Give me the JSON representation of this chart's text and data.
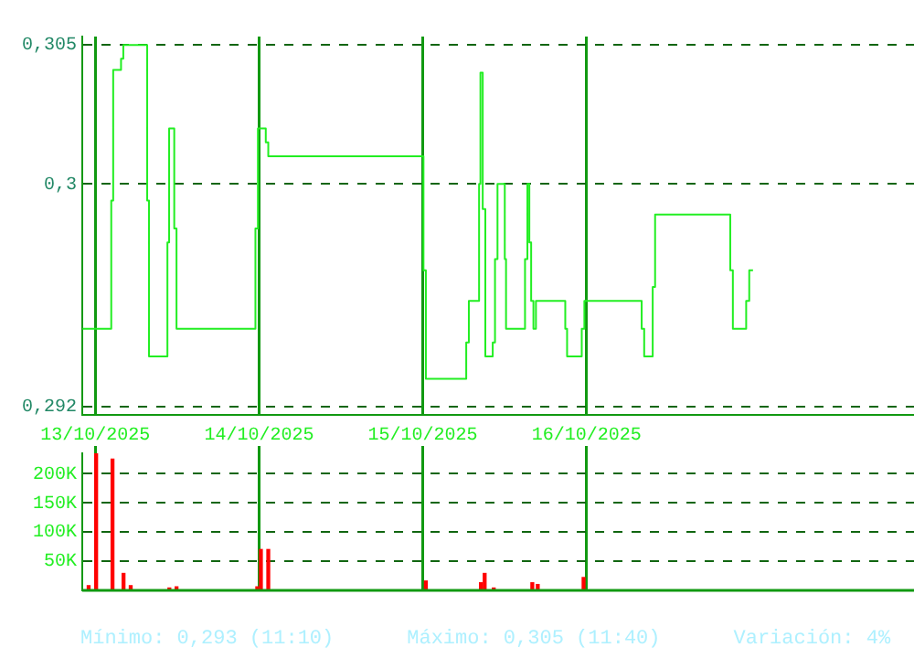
{
  "chart_data": [
    {
      "type": "step",
      "tick_labels": "y",
      "grid": true,
      "legend": false,
      "marker": "none",
      "xlim": [
        "2025-10-12T22:05",
        "2025-10-18T00:00"
      ],
      "xticks": [
        {
          "value": "2025-10-13",
          "label": null
        },
        {
          "value": "2025-10-14",
          "label": null
        },
        {
          "value": "2025-10-15",
          "label": null
        },
        {
          "value": "2025-10-16",
          "label": null
        }
      ],
      "ylim": [
        0.2917,
        0.3053
      ],
      "yticks": [
        {
          "value": 0.292,
          "label": "0,292"
        },
        {
          "value": 0.3,
          "label": "0,3"
        },
        {
          "value": 0.305,
          "label": "0,305"
        }
      ],
      "series": [
        {
          "color": "#22ee22",
          "x": [
            "2025-10-12T22:08",
            "2025-10-13T02:20",
            "2025-10-13T02:37",
            "2025-10-13T03:46",
            "2025-10-13T04:06",
            "2025-10-13T07:36",
            "2025-10-13T07:52",
            "2025-10-13T10:34",
            "2025-10-13T10:49",
            "2025-10-13T11:34",
            "2025-10-13T11:54",
            "2025-10-13T23:28",
            "2025-10-13T23:50",
            "2025-10-14T00:59",
            "2025-10-14T01:21",
            "2025-10-15T00:06",
            "2025-10-15T00:27",
            "2025-10-15T06:22",
            "2025-10-15T06:45",
            "2025-10-15T08:15",
            "2025-10-15T08:27",
            "2025-10-15T08:47",
            "2025-10-15T09:10",
            "2025-10-15T10:15",
            "2025-10-15T10:35",
            "2025-10-15T10:57",
            "2025-10-15T12:01",
            "2025-10-15T12:12",
            "2025-10-15T14:59",
            "2025-10-15T15:20",
            "2025-10-15T15:37",
            "2025-10-15T15:53",
            "2025-10-15T16:13",
            "2025-10-15T16:35",
            "2025-10-15T20:53",
            "2025-10-15T21:09",
            "2025-10-15T23:18",
            "2025-10-15T23:41",
            "2025-10-16T08:05",
            "2025-10-16T08:27",
            "2025-10-16T09:42",
            "2025-10-16T10:03",
            "2025-10-16T21:04",
            "2025-10-16T21:27",
            "2025-10-16T23:24",
            "2025-10-16T23:51",
            "2025-10-17T00:24"
          ],
          "values": [
            0.2948,
            0.2994,
            0.3041,
            0.3045,
            0.305,
            0.2994,
            0.2938,
            0.2979,
            0.302,
            0.2984,
            0.2948,
            0.2984,
            0.302,
            0.3015,
            0.301,
            0.2969,
            0.293,
            0.2943,
            0.2958,
            0.3,
            0.304,
            0.2991,
            0.2938,
            0.2943,
            0.2973,
            0.3,
            0.2973,
            0.2948,
            0.2973,
            0.3,
            0.2979,
            0.2958,
            0.2948,
            0.2958,
            0.2948,
            0.2938,
            0.2948,
            0.2958,
            0.2948,
            0.2938,
            0.2963,
            0.2989,
            0.2969,
            0.2948,
            0.2958,
            0.2969,
            0.2969
          ]
        }
      ]
    },
    {
      "type": "bar",
      "grid": true,
      "legend": false,
      "xlim": [
        "2025-10-12T22:05",
        "2025-10-18T00:00"
      ],
      "xticks": [
        {
          "value": "2025-10-13",
          "label": "13/10/2025"
        },
        {
          "value": "2025-10-14",
          "label": "14/10/2025"
        },
        {
          "value": "2025-10-15",
          "label": "15/10/2025"
        },
        {
          "value": "2025-10-16",
          "label": "16/10/2025"
        }
      ],
      "ylim": [
        0,
        235000
      ],
      "yticks": [
        {
          "value": 50000,
          "label": "50K"
        },
        {
          "value": 100000,
          "label": "100K"
        },
        {
          "value": 150000,
          "label": "150K"
        },
        {
          "value": 200000,
          "label": "200K"
        }
      ],
      "series": [
        {
          "color": "#ff0000",
          "x": [
            "2025-10-12T23:01",
            "2025-10-13T00:07",
            "2025-10-13T02:31",
            "2025-10-13T04:08",
            "2025-10-13T05:11",
            "2025-10-13T10:51",
            "2025-10-13T11:54",
            "2025-10-13T23:44",
            "2025-10-14T00:16",
            "2025-10-14T01:21",
            "2025-10-15T00:27",
            "2025-10-15T08:31",
            "2025-10-15T09:04",
            "2025-10-15T10:24",
            "2025-10-15T16:03",
            "2025-10-15T16:51",
            "2025-10-15T23:34"
          ],
          "values": [
            8000,
            235000,
            225000,
            29000,
            8000,
            4000,
            6000,
            6000,
            70000,
            70000,
            16000,
            13000,
            29000,
            4000,
            13000,
            10000,
            22000
          ]
        }
      ],
      "annotations": [
        "Mínimo: 0,293 (11:10)",
        "Máximo: 0,305 (11:40)",
        "Variación: 4%"
      ]
    }
  ]
}
